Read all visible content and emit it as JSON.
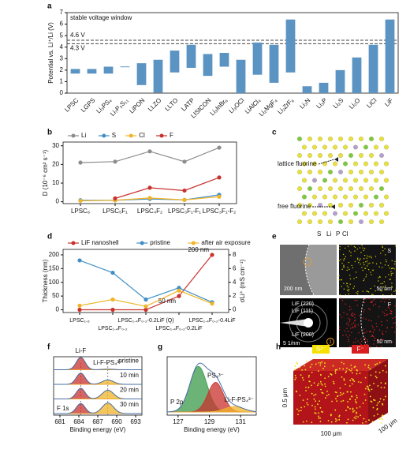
{
  "chart_data": [
    {
      "type": "range_bar",
      "panel": "a",
      "title": "stable voltage window",
      "y_label": "Potential vs. Li⁺/Li (V)",
      "categories": [
        "LPSC",
        "LGPS",
        "Li₃PS₄",
        "Li₇P₃S₁₁",
        "LiPON",
        "LLZO",
        "LLTO",
        "LATP",
        "LISICON",
        "Li₃InBr₆",
        "Li₃OCl",
        "LiAlCl₄",
        "Li₂MgF₄",
        "Li₂ZrF₆",
        "Li₃N",
        "Li₃P",
        "Li₂S",
        "Li₂O",
        "LiCl",
        "LiF"
      ],
      "low": [
        1.7,
        1.7,
        1.7,
        2.27,
        0.7,
        0.05,
        1.8,
        2.2,
        1.5,
        2.3,
        0.0,
        1.6,
        0.9,
        1.8,
        0.0,
        0.0,
        0.0,
        0.0,
        0.0,
        0.0
      ],
      "high": [
        2.1,
        2.1,
        2.3,
        2.32,
        2.6,
        2.9,
        3.7,
        4.2,
        3.4,
        3.5,
        2.9,
        4.4,
        4.2,
        6.4,
        0.6,
        0.9,
        2.0,
        3.1,
        4.2,
        6.4
      ],
      "color": "#5b93c2",
      "ylim": [
        0,
        7
      ],
      "yticks": [
        0,
        1,
        2,
        3,
        4,
        5,
        6,
        7
      ],
      "reference_lines": [
        {
          "value": 4.6,
          "label": "4.6 V"
        },
        {
          "value": 4.3,
          "label": "4.3 V"
        }
      ]
    },
    {
      "type": "line",
      "panel": "b",
      "y_label": "D (10⁻⁶ cm² s⁻¹)",
      "categories": [
        "LPSC₆",
        "LPSC₅F₁",
        "LPSC₄F₂",
        "LPSC₃F₁-F₁",
        "LPSC₃F₁-F₂"
      ],
      "series": [
        {
          "name": "Li",
          "color": "#8c8c8c",
          "values": [
            21,
            21.5,
            27,
            21.5,
            29
          ]
        },
        {
          "name": "S",
          "color": "#3f8fc4",
          "values": [
            0.8,
            0.8,
            1.5,
            1,
            3.7
          ]
        },
        {
          "name": "Cl",
          "color": "#f0b428",
          "values": [
            0.5,
            0.8,
            2,
            1,
            2.7
          ]
        },
        {
          "name": "F",
          "color": "#c8322d",
          "values": [
            null,
            1.8,
            7.5,
            6,
            13
          ]
        }
      ],
      "ylim": [
        -1,
        32
      ],
      "yticks": [
        0,
        10,
        20,
        30
      ],
      "legend": "top"
    },
    {
      "type": "line",
      "panel": "d",
      "y_label": "Thickness (nm)",
      "y2_label": "σLi⁺ (mS cm⁻¹)",
      "categories": [
        "LPSC₁.₆",
        "LPSC₁.₄F₀.₂",
        "LPSC₁.₄F₀.₂-0.2LiF (Q)",
        "LPSC₁.₄F₀.₂-0.2LiF",
        "LPSC₁.₄F₀.₂-0.4LiF"
      ],
      "series": [
        {
          "name": "LiF nanoshell",
          "color": "#c8322d",
          "values": [
            0,
            0,
            0,
            50,
            200
          ],
          "value_labels": [
            null,
            null,
            null,
            "50 nm",
            "200 nm"
          ]
        },
        {
          "name": "pristine",
          "color": "#3f8fc4",
          "axis": "y2",
          "values": [
            7.2,
            5.4,
            1.5,
            3.2,
            1.1
          ]
        },
        {
          "name": "after air exposure",
          "color": "#f0b428",
          "axis": "y2",
          "values": [
            0.6,
            1.5,
            0.5,
            2.8,
            0.9
          ]
        }
      ],
      "ylim": [
        -10,
        220
      ],
      "yticks": [
        0,
        50,
        100,
        150,
        200
      ],
      "y2lim": [
        -0.4,
        8.8
      ],
      "y2ticks": [
        0,
        2,
        4,
        6,
        8
      ],
      "legend": "top"
    },
    {
      "type": "spectrum",
      "panel": "f",
      "x_label": "Binding energy (eV)",
      "region_label": "F 1s",
      "fit_color": "#4a6fa5",
      "xlim": [
        680,
        694
      ],
      "xticks": [
        681,
        684,
        687,
        690,
        693
      ],
      "series": [
        {
          "name": "pristine",
          "peaks": [
            {
              "label": "Li-F",
              "color": "#c8322d",
              "center": 684.3,
              "height": 1,
              "width": 0.7
            },
            {
              "label": "Li-F-PS₄³⁻",
              "color": "#f0b428",
              "center": 688.6,
              "height": 0.05,
              "width": 0.9
            }
          ]
        },
        {
          "name": "10 min",
          "peaks": [
            {
              "color": "#c8322d",
              "center": 684.3,
              "height": 0.9,
              "width": 0.7
            },
            {
              "color": "#f0b428",
              "center": 688.6,
              "height": 0.35,
              "width": 0.9
            }
          ]
        },
        {
          "name": "20 min",
          "peaks": [
            {
              "color": "#c8322d",
              "center": 684.3,
              "height": 0.85,
              "width": 0.7
            },
            {
              "color": "#f0b428",
              "center": 688.6,
              "height": 0.7,
              "width": 0.9
            }
          ]
        },
        {
          "name": "30 min",
          "peaks": [
            {
              "color": "#c8322d",
              "center": 684.3,
              "height": 0.8,
              "width": 0.7
            },
            {
              "color": "#f0b428",
              "center": 688.6,
              "height": 0.85,
              "width": 0.9
            }
          ]
        }
      ]
    },
    {
      "type": "spectrum",
      "panel": "g",
      "x_label": "Binding energy (eV)",
      "region_label": "P 2p",
      "fit_color": "#4a6fa5",
      "xlim": [
        126.3,
        132
      ],
      "xticks": [
        127,
        129,
        131
      ],
      "series": [
        {
          "peaks": [
            {
              "color": "#3a9a4a",
              "center": 128.3,
              "height": 1,
              "width": 0.55
            },
            {
              "label": "PS₄³⁻",
              "color": "#c8322d",
              "center": 129.4,
              "height": 0.65,
              "width": 0.5
            },
            {
              "label": "Li-F-PS₄³⁻",
              "color": "#f0b428",
              "center": 130.6,
              "height": 0.12,
              "width": 0.6
            }
          ]
        }
      ]
    }
  ],
  "panel_c": {
    "panel": "c",
    "lattice_label": "lattice fluorine",
    "free_label": "free fluorine",
    "elements": [
      "S",
      "Li",
      "P",
      "Cl"
    ]
  },
  "panel_e": {
    "panel": "e",
    "tem_scale": "200 nm",
    "s_label": "S",
    "s_scale": "50 nm",
    "rings": [
      "LiF (220)",
      "LiF (111)",
      "LiF (200)"
    ],
    "saed_scale": "5 1/nm",
    "marker": "1",
    "f_label": "F",
    "f_scale": "50 nm"
  },
  "panel_h": {
    "panel": "h",
    "legend": [
      "S²⁻",
      "F⁻"
    ],
    "z_label": "0.5 μm",
    "x_label": "100 μm",
    "y_label": "100 μm"
  }
}
